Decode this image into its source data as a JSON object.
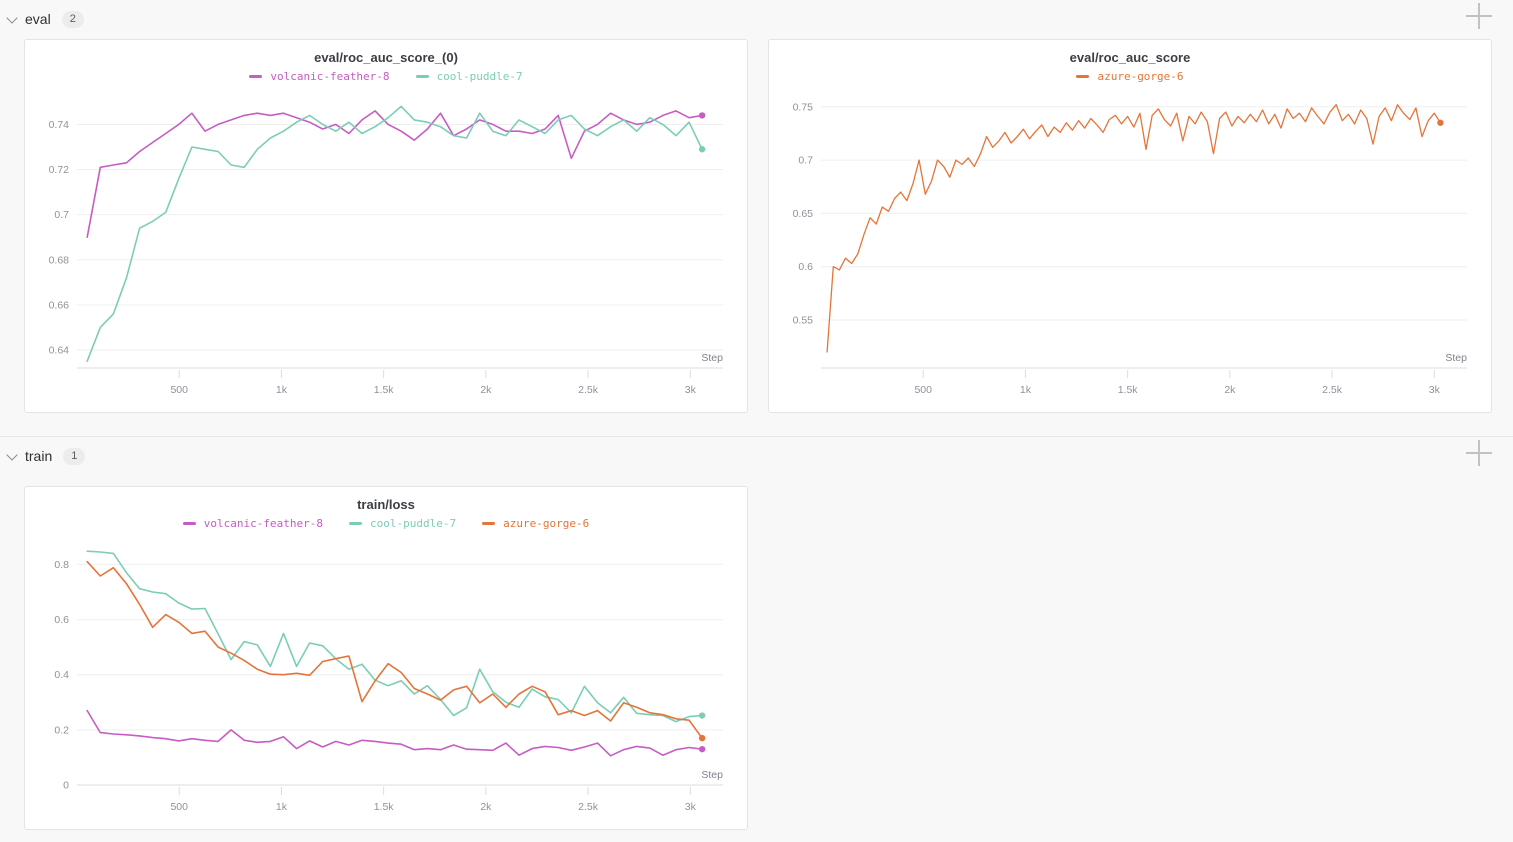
{
  "sections": [
    {
      "label": "eval",
      "count": "2"
    },
    {
      "label": "train",
      "count": "1"
    }
  ],
  "chart_data": [
    {
      "id": "eval-roc-auc-score-0",
      "type": "line",
      "title": "eval/roc_auc_score_(0)",
      "step_label": "Step",
      "xlim": [
        0,
        3160
      ],
      "ylim": [
        0.632,
        0.7535
      ],
      "grid": "horizontal",
      "legend_position": "top",
      "line_width": 1.6,
      "xticks": [
        {
          "v": 500,
          "label": "500"
        },
        {
          "v": 1000,
          "label": "1k"
        },
        {
          "v": 1500,
          "label": "1.5k"
        },
        {
          "v": 2000,
          "label": "2k"
        },
        {
          "v": 2500,
          "label": "2.5k"
        },
        {
          "v": 3000,
          "label": "3k"
        }
      ],
      "yticks": [
        {
          "v": 0.64,
          "label": "0.64"
        },
        {
          "v": 0.66,
          "label": "0.66"
        },
        {
          "v": 0.68,
          "label": "0.68"
        },
        {
          "v": 0.7,
          "label": "0.7"
        },
        {
          "v": 0.72,
          "label": "0.72"
        },
        {
          "v": 0.74,
          "label": "0.74"
        }
      ],
      "series": [
        {
          "name": "volcanic-feather-8",
          "color": "#c65cc4",
          "end_dot": true,
          "steps": [
            50,
            114,
            178,
            242,
            306,
            370,
            434,
            498,
            562,
            626,
            690,
            754,
            818,
            882,
            946,
            1010,
            1074,
            1138,
            1202,
            1266,
            1330,
            1394,
            1458,
            1522,
            1586,
            1650,
            1714,
            1778,
            1842,
            1906,
            1970,
            2034,
            2098,
            2162,
            2226,
            2290,
            2354,
            2418,
            2482,
            2546,
            2610,
            2674,
            2738,
            2802,
            2866,
            2930,
            2994,
            3058
          ],
          "values": [
            0.69,
            0.721,
            0.722,
            0.723,
            0.728,
            0.732,
            0.736,
            0.74,
            0.745,
            0.737,
            0.74,
            0.742,
            0.744,
            0.745,
            0.744,
            0.745,
            0.743,
            0.741,
            0.738,
            0.74,
            0.736,
            0.742,
            0.746,
            0.74,
            0.737,
            0.733,
            0.738,
            0.745,
            0.735,
            0.738,
            0.742,
            0.74,
            0.737,
            0.737,
            0.736,
            0.738,
            0.744,
            0.725,
            0.737,
            0.74,
            0.745,
            0.742,
            0.74,
            0.741,
            0.744,
            0.746,
            0.743,
            0.744
          ]
        },
        {
          "name": "cool-puddle-7",
          "color": "#7ccdb6",
          "end_dot": true,
          "steps": [
            50,
            114,
            178,
            242,
            306,
            370,
            434,
            498,
            562,
            626,
            690,
            754,
            818,
            882,
            946,
            1010,
            1074,
            1138,
            1202,
            1266,
            1330,
            1394,
            1458,
            1522,
            1586,
            1650,
            1714,
            1778,
            1842,
            1906,
            1970,
            2034,
            2098,
            2162,
            2226,
            2290,
            2354,
            2418,
            2482,
            2546,
            2610,
            2674,
            2738,
            2802,
            2866,
            2930,
            2994,
            3058
          ],
          "values": [
            0.635,
            0.65,
            0.656,
            0.672,
            0.694,
            0.697,
            0.701,
            0.716,
            0.73,
            0.729,
            0.728,
            0.722,
            0.721,
            0.729,
            0.734,
            0.737,
            0.741,
            0.744,
            0.74,
            0.737,
            0.741,
            0.736,
            0.739,
            0.743,
            0.748,
            0.742,
            0.741,
            0.739,
            0.735,
            0.734,
            0.745,
            0.737,
            0.735,
            0.742,
            0.739,
            0.736,
            0.742,
            0.744,
            0.738,
            0.735,
            0.739,
            0.742,
            0.737,
            0.743,
            0.74,
            0.735,
            0.741,
            0.729
          ]
        }
      ]
    },
    {
      "id": "eval-roc-auc-score",
      "type": "line",
      "title": "eval/roc_auc_score",
      "step_label": "Step",
      "xlim": [
        0,
        3160
      ],
      "ylim": [
        0.505,
        0.762
      ],
      "grid": "horizontal",
      "legend_position": "top",
      "line_width": 1.3,
      "xticks": [
        {
          "v": 500,
          "label": "500"
        },
        {
          "v": 1000,
          "label": "1k"
        },
        {
          "v": 1500,
          "label": "1.5k"
        },
        {
          "v": 2000,
          "label": "2k"
        },
        {
          "v": 2500,
          "label": "2.5k"
        },
        {
          "v": 3000,
          "label": "3k"
        }
      ],
      "yticks": [
        {
          "v": 0.55,
          "label": "0.55"
        },
        {
          "v": 0.6,
          "label": "0.6"
        },
        {
          "v": 0.65,
          "label": "0.65"
        },
        {
          "v": 0.7,
          "label": "0.7"
        },
        {
          "v": 0.75,
          "label": "0.75"
        }
      ],
      "series": [
        {
          "name": "azure-gorge-6",
          "color": "#e57439",
          "end_dot": true,
          "steps": [
            30,
            60,
            90,
            120,
            150,
            180,
            210,
            240,
            270,
            300,
            330,
            360,
            390,
            420,
            450,
            480,
            510,
            540,
            570,
            600,
            630,
            660,
            690,
            720,
            750,
            780,
            810,
            840,
            870,
            900,
            930,
            960,
            990,
            1020,
            1050,
            1080,
            1110,
            1140,
            1170,
            1200,
            1230,
            1260,
            1290,
            1320,
            1350,
            1380,
            1410,
            1440,
            1470,
            1500,
            1530,
            1560,
            1590,
            1620,
            1650,
            1680,
            1710,
            1740,
            1770,
            1800,
            1830,
            1860,
            1890,
            1920,
            1950,
            1980,
            2010,
            2040,
            2070,
            2100,
            2130,
            2160,
            2190,
            2220,
            2250,
            2280,
            2310,
            2340,
            2370,
            2400,
            2430,
            2460,
            2490,
            2520,
            2550,
            2580,
            2610,
            2640,
            2670,
            2700,
            2730,
            2760,
            2790,
            2820,
            2850,
            2880,
            2910,
            2940,
            2970,
            3000,
            3030
          ],
          "values": [
            0.52,
            0.6,
            0.597,
            0.608,
            0.603,
            0.612,
            0.63,
            0.646,
            0.64,
            0.656,
            0.652,
            0.664,
            0.67,
            0.662,
            0.678,
            0.7,
            0.668,
            0.68,
            0.7,
            0.694,
            0.684,
            0.7,
            0.696,
            0.702,
            0.694,
            0.706,
            0.722,
            0.712,
            0.718,
            0.726,
            0.716,
            0.722,
            0.729,
            0.72,
            0.727,
            0.733,
            0.722,
            0.731,
            0.726,
            0.735,
            0.728,
            0.737,
            0.73,
            0.739,
            0.733,
            0.726,
            0.738,
            0.742,
            0.734,
            0.741,
            0.731,
            0.744,
            0.71,
            0.742,
            0.748,
            0.738,
            0.732,
            0.744,
            0.718,
            0.741,
            0.734,
            0.745,
            0.736,
            0.706,
            0.739,
            0.745,
            0.732,
            0.741,
            0.735,
            0.743,
            0.736,
            0.747,
            0.734,
            0.743,
            0.73,
            0.748,
            0.739,
            0.744,
            0.736,
            0.749,
            0.741,
            0.734,
            0.745,
            0.752,
            0.737,
            0.743,
            0.734,
            0.747,
            0.739,
            0.715,
            0.741,
            0.749,
            0.737,
            0.752,
            0.744,
            0.738,
            0.749,
            0.722,
            0.737,
            0.744,
            0.735
          ]
        }
      ]
    },
    {
      "id": "train-loss",
      "type": "line",
      "title": "train/loss",
      "step_label": "Step",
      "xlim": [
        0,
        3160
      ],
      "ylim": [
        0,
        0.885
      ],
      "grid": "horizontal",
      "legend_position": "top",
      "line_width": 1.6,
      "xticks": [
        {
          "v": 500,
          "label": "500"
        },
        {
          "v": 1000,
          "label": "1k"
        },
        {
          "v": 1500,
          "label": "1.5k"
        },
        {
          "v": 2000,
          "label": "2k"
        },
        {
          "v": 2500,
          "label": "2.5k"
        },
        {
          "v": 3000,
          "label": "3k"
        }
      ],
      "yticks": [
        {
          "v": 0,
          "label": "0"
        },
        {
          "v": 0.2,
          "label": "0.2"
        },
        {
          "v": 0.4,
          "label": "0.4"
        },
        {
          "v": 0.6,
          "label": "0.6"
        },
        {
          "v": 0.8,
          "label": "0.8"
        }
      ],
      "series": [
        {
          "name": "volcanic-feather-8",
          "color": "#c65cc4",
          "end_dot": true,
          "steps": [
            50,
            114,
            178,
            242,
            306,
            370,
            434,
            498,
            562,
            626,
            690,
            754,
            818,
            882,
            946,
            1010,
            1074,
            1138,
            1202,
            1266,
            1330,
            1394,
            1458,
            1522,
            1586,
            1650,
            1714,
            1778,
            1842,
            1906,
            1970,
            2034,
            2098,
            2162,
            2226,
            2290,
            2354,
            2418,
            2482,
            2546,
            2610,
            2674,
            2738,
            2802,
            2866,
            2930,
            2994,
            3058
          ],
          "values": [
            0.27,
            0.19,
            0.185,
            0.182,
            0.178,
            0.172,
            0.168,
            0.16,
            0.168,
            0.162,
            0.158,
            0.2,
            0.162,
            0.155,
            0.158,
            0.175,
            0.132,
            0.16,
            0.138,
            0.158,
            0.145,
            0.162,
            0.158,
            0.152,
            0.148,
            0.128,
            0.132,
            0.128,
            0.145,
            0.13,
            0.128,
            0.126,
            0.152,
            0.108,
            0.132,
            0.14,
            0.136,
            0.126,
            0.138,
            0.152,
            0.106,
            0.128,
            0.14,
            0.134,
            0.108,
            0.128,
            0.136,
            0.13
          ]
        },
        {
          "name": "cool-puddle-7",
          "color": "#7ccdb6",
          "end_dot": true,
          "steps": [
            50,
            114,
            178,
            242,
            306,
            370,
            434,
            498,
            562,
            626,
            690,
            754,
            818,
            882,
            946,
            1010,
            1074,
            1138,
            1202,
            1266,
            1330,
            1394,
            1458,
            1522,
            1586,
            1650,
            1714,
            1778,
            1842,
            1906,
            1970,
            2034,
            2098,
            2162,
            2226,
            2290,
            2354,
            2418,
            2482,
            2546,
            2610,
            2674,
            2738,
            2802,
            2866,
            2930,
            2994,
            3058
          ],
          "values": [
            0.848,
            0.845,
            0.84,
            0.77,
            0.712,
            0.7,
            0.694,
            0.66,
            0.638,
            0.64,
            0.548,
            0.455,
            0.52,
            0.508,
            0.43,
            0.55,
            0.43,
            0.515,
            0.505,
            0.458,
            0.42,
            0.438,
            0.38,
            0.36,
            0.378,
            0.33,
            0.36,
            0.31,
            0.252,
            0.28,
            0.42,
            0.338,
            0.3,
            0.282,
            0.348,
            0.32,
            0.31,
            0.262,
            0.358,
            0.298,
            0.262,
            0.318,
            0.26,
            0.255,
            0.252,
            0.23,
            0.248,
            0.252
          ]
        },
        {
          "name": "azure-gorge-6",
          "color": "#e57439",
          "end_dot": true,
          "steps": [
            50,
            114,
            178,
            242,
            306,
            370,
            434,
            498,
            562,
            626,
            690,
            754,
            818,
            882,
            946,
            1010,
            1074,
            1138,
            1202,
            1266,
            1330,
            1394,
            1458,
            1522,
            1586,
            1650,
            1714,
            1778,
            1842,
            1906,
            1970,
            2034,
            2098,
            2162,
            2226,
            2290,
            2354,
            2418,
            2482,
            2546,
            2610,
            2674,
            2738,
            2802,
            2866,
            2930,
            2994,
            3058
          ],
          "values": [
            0.81,
            0.758,
            0.788,
            0.73,
            0.655,
            0.572,
            0.618,
            0.59,
            0.55,
            0.558,
            0.5,
            0.478,
            0.452,
            0.42,
            0.402,
            0.4,
            0.405,
            0.398,
            0.448,
            0.458,
            0.468,
            0.302,
            0.378,
            0.44,
            0.408,
            0.35,
            0.33,
            0.308,
            0.345,
            0.358,
            0.298,
            0.33,
            0.282,
            0.33,
            0.358,
            0.338,
            0.255,
            0.27,
            0.252,
            0.27,
            0.232,
            0.298,
            0.282,
            0.262,
            0.255,
            0.24,
            0.235,
            0.17
          ]
        }
      ]
    }
  ]
}
